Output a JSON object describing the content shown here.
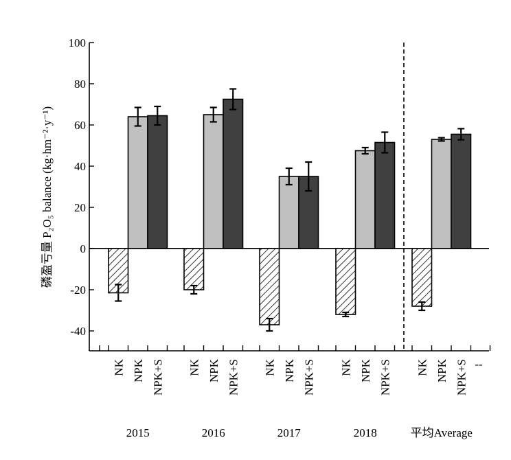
{
  "chart_data": {
    "type": "bar",
    "ylabel_cn": "磷盈亏量",
    "ylabel_en": "P₂O₅ balance (kg·hm⁻²·y⁻¹)",
    "ylim": [
      -50,
      100
    ],
    "yticks": [
      100,
      80,
      60,
      40,
      20,
      0,
      -20,
      -40
    ],
    "grid": false,
    "groups": [
      "2015",
      "2016",
      "2017",
      "2018",
      "平均Average"
    ],
    "treatments": [
      "NK",
      "NPK",
      "NPK+S"
    ],
    "extra_tick_label": "--",
    "series": [
      {
        "name": "NK",
        "fill": "hatch",
        "color": "#ffffff",
        "values": [
          -21.5,
          -20,
          -37,
          -32,
          -28
        ],
        "errors": [
          4,
          2,
          3,
          1,
          2
        ]
      },
      {
        "name": "NPK",
        "fill": "solid",
        "color": "#c0c0c0",
        "values": [
          64,
          65,
          35,
          47.5,
          53
        ],
        "errors": [
          4.5,
          3.5,
          4,
          1.5,
          0.8
        ]
      },
      {
        "name": "NPK+S",
        "fill": "solid",
        "color": "#404040",
        "values": [
          64.5,
          72.5,
          35,
          51.5,
          55.5
        ],
        "errors": [
          4.5,
          5,
          7,
          5,
          2.7
        ]
      }
    ],
    "divider_after_group": 3
  }
}
